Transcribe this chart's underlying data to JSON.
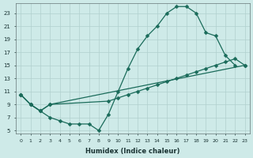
{
  "xlabel": "Humidex (Indice chaleur)",
  "bg_color": "#ceeae8",
  "grid_color": "#b0d0ce",
  "line_color": "#1a6b5a",
  "xlim": [
    -0.5,
    23.5
  ],
  "ylim": [
    4.5,
    24.5
  ],
  "xticks": [
    0,
    1,
    2,
    3,
    4,
    5,
    6,
    7,
    8,
    9,
    10,
    11,
    12,
    13,
    14,
    15,
    16,
    17,
    18,
    19,
    20,
    21,
    22,
    23
  ],
  "yticks": [
    5,
    7,
    9,
    11,
    13,
    15,
    17,
    19,
    21,
    23
  ],
  "line1_x": [
    0,
    1,
    2,
    3,
    4,
    5,
    6,
    7,
    8,
    9,
    10,
    11,
    12,
    13,
    14,
    15,
    16,
    17,
    18,
    19,
    20,
    21,
    22
  ],
  "line1_y": [
    10.5,
    9.0,
    8.0,
    7.0,
    6.5,
    6.0,
    6.0,
    6.0,
    5.0,
    7.5,
    11.0,
    14.5,
    17.5,
    19.5,
    21.0,
    23.0,
    24.0,
    24.0,
    23.0,
    20.0,
    19.5,
    16.5,
    15.0
  ],
  "line2_x": [
    0,
    1,
    2,
    3,
    9,
    10,
    11,
    12,
    13,
    14,
    15,
    16,
    17,
    18,
    19,
    20,
    21,
    22,
    23
  ],
  "line2_y": [
    10.5,
    9.0,
    8.0,
    9.0,
    9.5,
    10.0,
    10.5,
    11.0,
    11.5,
    12.0,
    12.5,
    13.0,
    13.5,
    14.0,
    14.5,
    15.0,
    15.5,
    16.0,
    15.0
  ],
  "line3_x": [
    0,
    1,
    2,
    3,
    23
  ],
  "line3_y": [
    10.5,
    9.0,
    8.0,
    9.0,
    15.0
  ],
  "markersize": 2.5,
  "linewidth": 0.9
}
